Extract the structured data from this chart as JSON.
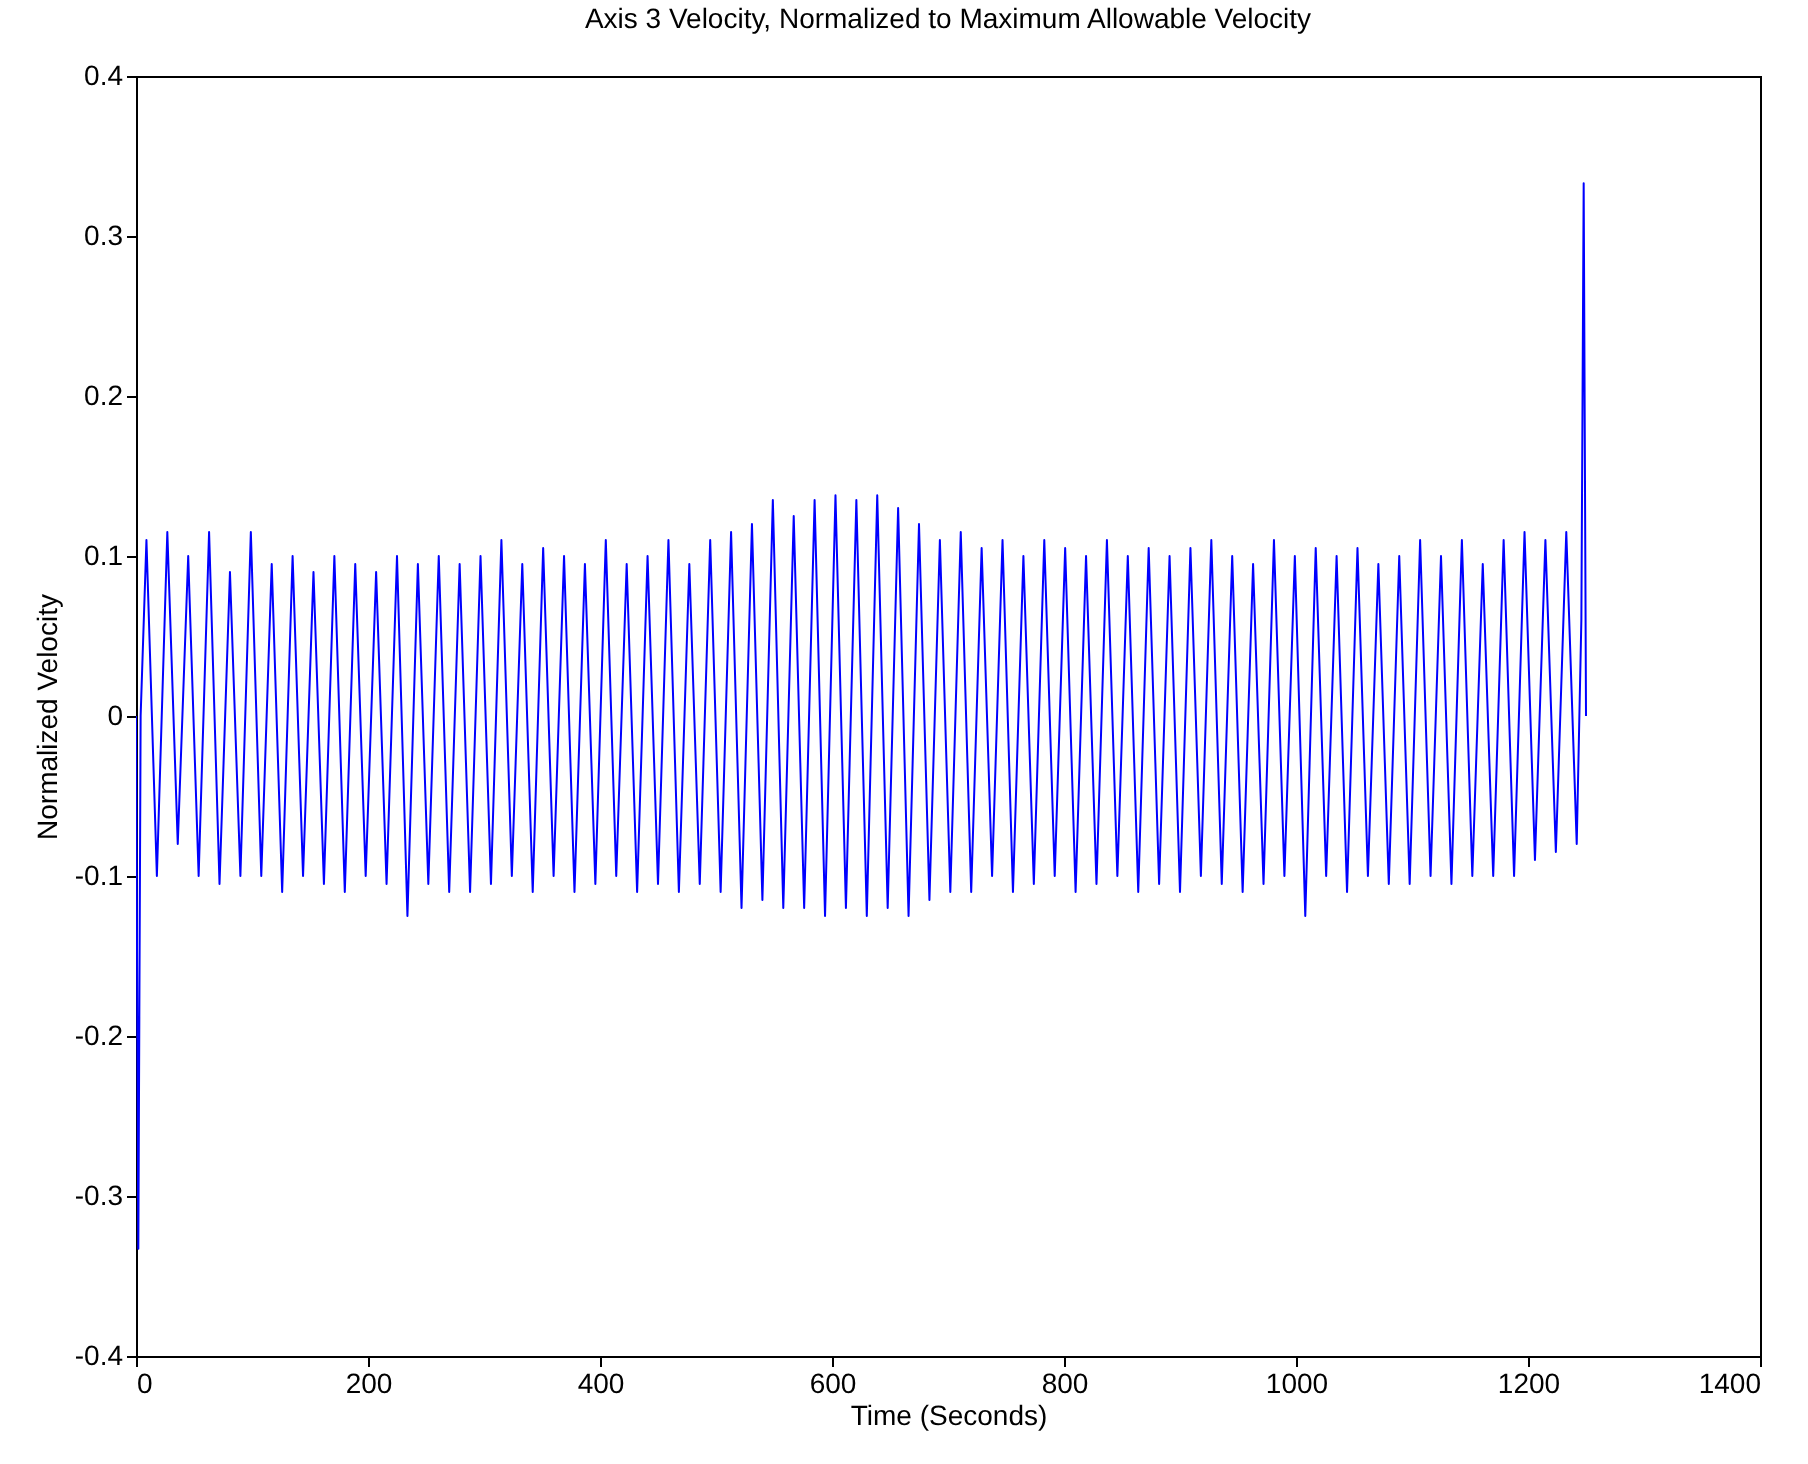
{
  "chart_data": {
    "type": "line",
    "title": "Axis 3 Velocity, Normalized to Maximum Allowable Velocity",
    "xlabel": "Time (Seconds)",
    "ylabel": "Normalized Velocity",
    "x": [
      0,
      2,
      4,
      9,
      18,
      27,
      36,
      45,
      54,
      63,
      72,
      81,
      90,
      99,
      108,
      117,
      126,
      135,
      144,
      153,
      162,
      171,
      180,
      189,
      198,
      207,
      216,
      225,
      234,
      243,
      252,
      261,
      270,
      279,
      288,
      297,
      306,
      315,
      324,
      333,
      342,
      351,
      360,
      369,
      378,
      387,
      396,
      405,
      414,
      423,
      432,
      441,
      450,
      459,
      468,
      477,
      486,
      495,
      504,
      513,
      522,
      531,
      540,
      549,
      558,
      567,
      576,
      585,
      594,
      603,
      612,
      621,
      630,
      639,
      648,
      657,
      666,
      675,
      684,
      693,
      702,
      711,
      720,
      729,
      738,
      747,
      756,
      765,
      774,
      783,
      792,
      801,
      810,
      819,
      828,
      837,
      846,
      855,
      864,
      873,
      882,
      891,
      900,
      909,
      918,
      927,
      936,
      945,
      954,
      963,
      972,
      981,
      990,
      999,
      1008,
      1017,
      1026,
      1035,
      1044,
      1053,
      1062,
      1071,
      1080,
      1089,
      1098,
      1107,
      1116,
      1125,
      1134,
      1143,
      1152,
      1161,
      1170,
      1179,
      1188,
      1197,
      1206,
      1215,
      1224,
      1233,
      1242,
      1246,
      1248,
      1250
    ],
    "series": [
      {
        "color": "#0000ff",
        "values": [
          0,
          -0.333,
          0,
          0.11,
          -0.1,
          0.115,
          -0.08,
          0.1,
          -0.1,
          0.115,
          -0.105,
          0.09,
          -0.1,
          0.115,
          -0.1,
          0.095,
          -0.11,
          0.1,
          -0.1,
          0.09,
          -0.105,
          0.1,
          -0.11,
          0.095,
          -0.1,
          0.09,
          -0.105,
          0.1,
          -0.125,
          0.095,
          -0.105,
          0.1,
          -0.11,
          0.095,
          -0.11,
          0.1,
          -0.105,
          0.11,
          -0.1,
          0.095,
          -0.11,
          0.105,
          -0.1,
          0.1,
          -0.11,
          0.095,
          -0.105,
          0.11,
          -0.1,
          0.095,
          -0.11,
          0.1,
          -0.105,
          0.11,
          -0.11,
          0.095,
          -0.105,
          0.11,
          -0.11,
          0.115,
          -0.12,
          0.12,
          -0.115,
          0.135,
          -0.12,
          0.125,
          -0.12,
          0.135,
          -0.125,
          0.138,
          -0.12,
          0.135,
          -0.125,
          0.138,
          -0.12,
          0.13,
          -0.125,
          0.12,
          -0.115,
          0.11,
          -0.11,
          0.115,
          -0.11,
          0.105,
          -0.1,
          0.11,
          -0.11,
          0.1,
          -0.105,
          0.11,
          -0.1,
          0.105,
          -0.11,
          0.1,
          -0.105,
          0.11,
          -0.1,
          0.1,
          -0.11,
          0.105,
          -0.105,
          0.1,
          -0.11,
          0.105,
          -0.1,
          0.11,
          -0.105,
          0.1,
          -0.11,
          0.095,
          -0.105,
          0.11,
          -0.1,
          0.1,
          -0.125,
          0.105,
          -0.1,
          0.1,
          -0.11,
          0.105,
          -0.1,
          0.095,
          -0.105,
          0.1,
          -0.105,
          0.11,
          -0.1,
          0.1,
          -0.105,
          0.11,
          -0.1,
          0.095,
          -0.1,
          0.11,
          -0.1,
          0.115,
          -0.09,
          0.11,
          -0.085,
          0.115,
          -0.08,
          0.06,
          0.333,
          0
        ]
      }
    ],
    "xlim": [
      0,
      1400
    ],
    "xticks": [
      0,
      200,
      400,
      600,
      800,
      1000,
      1200,
      1400
    ],
    "ylim": [
      -0.4,
      0.4
    ],
    "yticks": [
      -0.4,
      -0.3,
      -0.2,
      -0.1,
      0,
      0.1,
      0.2,
      0.3,
      0.4
    ],
    "grid": false,
    "marker": "none",
    "line_style": "solid"
  }
}
